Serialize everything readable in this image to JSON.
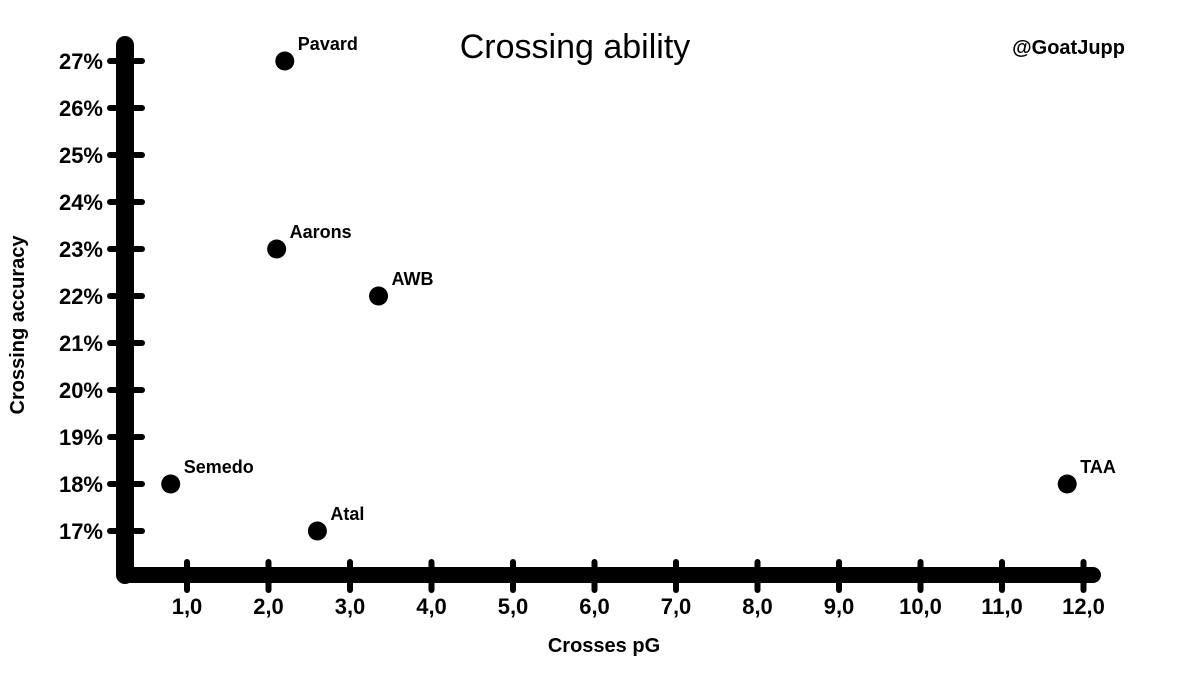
{
  "chart_data": {
    "type": "scatter",
    "title": "Crossing ability",
    "credit": "@GoatJupp",
    "xlabel": "Crosses pG",
    "ylabel": "Crossing accuracy",
    "x_ticks": [
      1,
      2,
      3,
      4,
      5,
      6,
      7,
      8,
      9,
      10,
      11,
      12
    ],
    "x_tick_labels": [
      "1,0",
      "2,0",
      "3,0",
      "4,0",
      "5,0",
      "6,0",
      "7,0",
      "8,0",
      "9,0",
      "10,0",
      "11,0",
      "12,0"
    ],
    "y_ticks": [
      17,
      18,
      19,
      20,
      21,
      22,
      23,
      24,
      25,
      26,
      27
    ],
    "y_tick_labels": [
      "17%",
      "18%",
      "19%",
      "20%",
      "21%",
      "22%",
      "23%",
      "24%",
      "25%",
      "26%",
      "27%"
    ],
    "xlim": [
      0,
      12.3
    ],
    "ylim": [
      16.1,
      27.4
    ],
    "grid": false,
    "points": [
      {
        "label": "Pavard",
        "x": 2.2,
        "y": 27
      },
      {
        "label": "Aarons",
        "x": 2.1,
        "y": 23
      },
      {
        "label": "AWB",
        "x": 3.35,
        "y": 22
      },
      {
        "label": "Semedo",
        "x": 0.8,
        "y": 18
      },
      {
        "label": "Atal",
        "x": 2.6,
        "y": 17
      },
      {
        "label": "TAA",
        "x": 11.8,
        "y": 18
      }
    ]
  }
}
